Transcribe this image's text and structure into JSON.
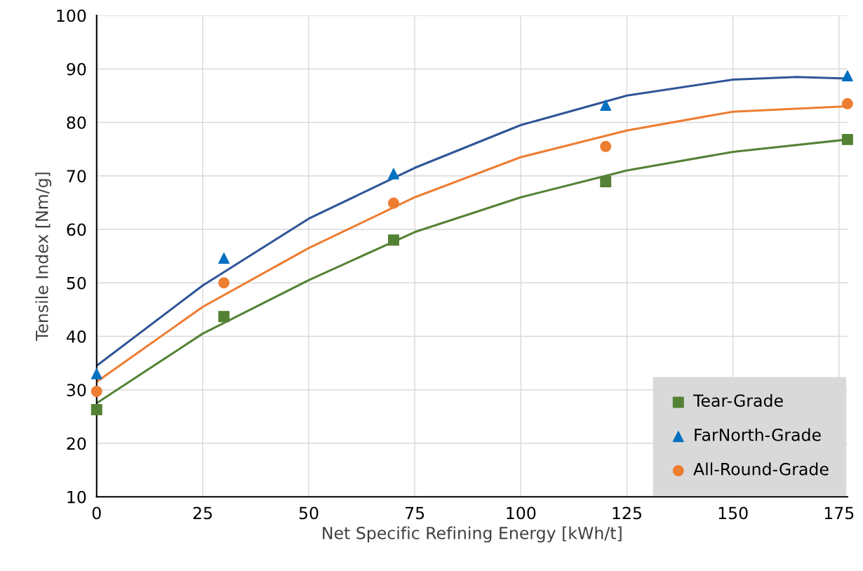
{
  "chart_data": {
    "type": "scatter",
    "xlabel": "Net Specific Refining Energy [kWh/t]",
    "ylabel": "Tensile Index [Nm/g]",
    "xlim": [
      0,
      177
    ],
    "ylim": [
      10,
      100
    ],
    "xticks": [
      0,
      25,
      50,
      75,
      100,
      125,
      150,
      175
    ],
    "yticks": [
      10,
      20,
      30,
      40,
      50,
      60,
      70,
      80,
      90,
      100
    ],
    "grid": true,
    "legend": "bottom right",
    "series": [
      {
        "name": "Tear-Grade",
        "marker": "square",
        "color": "#548235",
        "x": [
          0,
          30,
          70,
          120,
          177
        ],
        "values": [
          26.3,
          43.7,
          58.0,
          68.9,
          76.8
        ]
      },
      {
        "name": "FarNorth-Grade",
        "marker": "triangle",
        "color": "#0070c0",
        "x": [
          0,
          30,
          70,
          120,
          177
        ],
        "values": [
          33.0,
          54.6,
          70.4,
          83.2,
          88.7
        ]
      },
      {
        "name": "All-Round-Grade",
        "marker": "circle",
        "color": "#ed7d31",
        "x": [
          0,
          30,
          70,
          120,
          177
        ],
        "values": [
          29.7,
          50.0,
          64.9,
          75.5,
          83.5
        ]
      },
      {
        "type": "line",
        "color": "#548235",
        "x": [
          0,
          25,
          50,
          75,
          100,
          125,
          150,
          177
        ],
        "values": [
          27.5,
          40.5,
          50.5,
          59.5,
          66.0,
          71.0,
          74.5,
          76.8
        ]
      },
      {
        "type": "line",
        "color": "#2f5597",
        "x": [
          0,
          25,
          50,
          75,
          100,
          125,
          150,
          165,
          177
        ],
        "values": [
          34.5,
          49.5,
          62.0,
          71.5,
          79.5,
          85.0,
          88.0,
          88.5,
          88.2
        ]
      },
      {
        "type": "line",
        "color": "#ed7d31",
        "x": [
          0,
          25,
          50,
          75,
          100,
          125,
          150,
          177
        ],
        "values": [
          31.5,
          45.5,
          56.5,
          66.0,
          73.5,
          78.5,
          82.0,
          83.0
        ]
      }
    ]
  }
}
